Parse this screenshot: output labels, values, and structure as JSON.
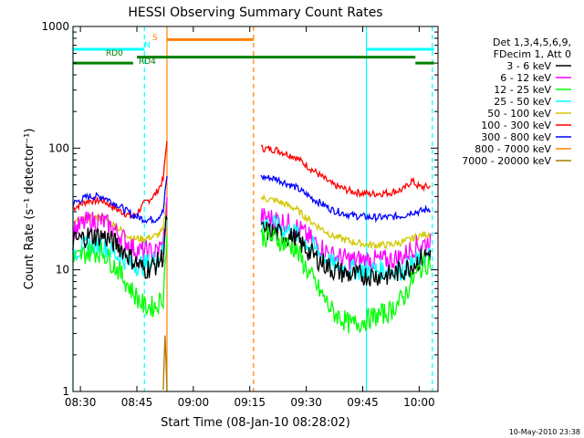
{
  "chart_data": {
    "type": "line",
    "title": "HESSI Observing Summary Count Rates",
    "xlabel": "Start Time (08-Jan-10 08:28:02)",
    "ylabel": "Count Rate (s⁻¹ detector⁻¹)",
    "footer": "10-May-2010 23:38",
    "yscale": "log",
    "xlim": [
      "08:28:02",
      "10:05:00"
    ],
    "ylim": [
      1,
      1000
    ],
    "x_ticks": [
      "08:30",
      "08:45",
      "09:00",
      "09:15",
      "09:30",
      "09:45",
      "10:00"
    ],
    "y_ticks": [
      "1",
      "10",
      "100",
      "1000"
    ],
    "legend": {
      "header": [
        "Det 1,3,4,5,6,9,",
        "FDecim 1, Att 0"
      ],
      "placement": "right",
      "entries": [
        {
          "label": "3 - 6 keV",
          "color": "#000000"
        },
        {
          "label": "6 - 12 keV",
          "color": "#ff00ff"
        },
        {
          "label": "12 - 25 keV",
          "color": "#00ff00"
        },
        {
          "label": "25 - 50 keV",
          "color": "#00ffff"
        },
        {
          "label": "50 - 100 keV",
          "color": "#d2c800"
        },
        {
          "label": "100 - 300 keV",
          "color": "#ff0000"
        },
        {
          "label": "300 - 800 keV",
          "color": "#0000ff"
        },
        {
          "label": "800 - 7000 keV",
          "color": "#ff8000"
        },
        {
          "label": "7000 - 20000 keV",
          "color": "#aa7800"
        }
      ]
    },
    "flag_bars": [
      {
        "label": "N",
        "color": "#00ffff",
        "y": 650,
        "segments": [
          [
            "08:28",
            "08:47"
          ],
          [
            "09:46",
            "10:04"
          ]
        ]
      },
      {
        "label": "S",
        "color": "#ff8000",
        "y": 780,
        "segments": [
          [
            "08:53",
            "09:16"
          ]
        ]
      },
      {
        "label": "RD0",
        "color": "#008000",
        "y": 500,
        "segments": [
          [
            "08:28",
            "08:44"
          ],
          [
            "09:59",
            "10:04"
          ]
        ]
      },
      {
        "label": "RD4",
        "color": "#008000",
        "y": 560,
        "segments": [
          [
            "08:45",
            "09:59"
          ]
        ]
      }
    ],
    "vlines": [
      {
        "time": "08:28:02",
        "color": "#00ffff",
        "style": "solid"
      },
      {
        "time": "08:47:00",
        "color": "#00ffff",
        "style": "dashed"
      },
      {
        "time": "08:53:00",
        "color": "#ff8000",
        "style": "solid"
      },
      {
        "time": "09:16:00",
        "color": "#ff8000",
        "style": "dashed"
      },
      {
        "time": "09:46:00",
        "color": "#00ffff",
        "style": "solid"
      },
      {
        "time": "10:03:30",
        "color": "#00ffff",
        "style": "dashed"
      }
    ],
    "series": [
      {
        "name": "100 - 300 keV",
        "color": "#ff0000",
        "segments": [
          {
            "x": [
              "08:28",
              "08:32",
              "08:36",
              "08:40",
              "08:44",
              "08:47",
              "08:50",
              "08:52",
              "08:53"
            ],
            "y": [
              32,
              37,
              37,
              31,
              27,
              35,
              42,
              55,
              120
            ]
          },
          {
            "x": [
              "09:18",
              "09:22",
              "09:27",
              "09:32",
              "09:37",
              "09:42",
              "09:47",
              "09:52",
              "09:56",
              "09:58",
              "10:00",
              "10:03"
            ],
            "y": [
              100,
              97,
              85,
              65,
              50,
              44,
              42,
              43,
              46,
              54,
              48,
              48
            ]
          }
        ]
      },
      {
        "name": "300 - 800 keV",
        "color": "#0000ff",
        "segments": [
          {
            "x": [
              "08:28",
              "08:32",
              "08:36",
              "08:40",
              "08:44",
              "08:47",
              "08:50",
              "08:52",
              "08:53"
            ],
            "y": [
              35,
              40,
              40,
              34,
              28,
              26,
              26,
              30,
              60
            ]
          },
          {
            "x": [
              "09:18",
              "09:22",
              "09:27",
              "09:32",
              "09:37",
              "09:42",
              "09:47",
              "09:52",
              "09:56",
              "09:58",
              "10:00",
              "10:03"
            ],
            "y": [
              58,
              56,
              48,
              38,
              31,
              28,
              27,
              27,
              28,
              30,
              30,
              32
            ]
          }
        ]
      },
      {
        "name": "50 - 100 keV",
        "color": "#d2c800",
        "segments": [
          {
            "x": [
              "08:28",
              "08:32",
              "08:36",
              "08:40",
              "08:44",
              "08:47",
              "08:50",
              "08:52",
              "08:53"
            ],
            "y": [
              24,
              27,
              27,
              22,
              18,
              18,
              19,
              21,
              40
            ]
          },
          {
            "x": [
              "09:18",
              "09:22",
              "09:27",
              "09:32",
              "09:37",
              "09:42",
              "09:47",
              "09:52",
              "09:56",
              "09:58",
              "10:00",
              "10:03"
            ],
            "y": [
              39,
              37,
              32,
              24,
              19,
              17,
              16,
              16,
              17,
              18,
              19,
              20
            ]
          }
        ]
      },
      {
        "name": "6 - 12 keV",
        "color": "#ff00ff",
        "segments": [
          {
            "x": [
              "08:28",
              "08:32",
              "08:36",
              "08:40",
              "08:44",
              "08:47",
              "08:50",
              "08:52",
              "08:53"
            ],
            "y": [
              21,
              25,
              25,
              20,
              15,
              14,
              14,
              16,
              35
            ]
          },
          {
            "x": [
              "09:18",
              "09:22",
              "09:27",
              "09:32",
              "09:37",
              "09:42",
              "09:47",
              "09:52",
              "09:56",
              "09:58",
              "10:00",
              "10:03"
            ],
            "y": [
              27,
              26,
              23,
              17,
              13,
              12,
              12,
              12,
              13,
              15,
              16,
              17
            ]
          }
        ]
      },
      {
        "name": "25 - 50 keV",
        "color": "#00ffff",
        "segments": [
          {
            "x": [
              "08:28",
              "08:32",
              "08:36",
              "08:40",
              "08:44",
              "08:47",
              "08:50",
              "08:52",
              "08:53"
            ],
            "y": [
              14,
              16,
              16,
              13,
              11,
              11,
              12,
              14,
              30
            ]
          },
          {
            "x": [
              "09:18",
              "09:22",
              "09:27",
              "09:32",
              "09:37",
              "09:42",
              "09:47",
              "09:52",
              "09:56",
              "09:58",
              "10:00",
              "10:03"
            ],
            "y": [
              24,
              23,
              20,
              15,
              11,
              10,
              10,
              10,
              10,
              11,
              12,
              13
            ]
          }
        ]
      },
      {
        "name": "3 - 6 keV",
        "color": "#000000",
        "segments": [
          {
            "x": [
              "08:28",
              "08:32",
              "08:36",
              "08:40",
              "08:44",
              "08:47",
              "08:50",
              "08:52",
              "08:53"
            ],
            "y": [
              17,
              19,
              19,
              16,
              12,
              10,
              11,
              13,
              28
            ]
          },
          {
            "x": [
              "09:18",
              "09:22",
              "09:27",
              "09:32",
              "09:37",
              "09:42",
              "09:47",
              "09:52",
              "09:56",
              "09:58",
              "10:00",
              "10:03"
            ],
            "y": [
              21,
              20,
              18,
              13,
              10,
              9,
              9,
              9,
              10,
              11,
              12,
              14
            ]
          }
        ]
      },
      {
        "name": "12 - 25 keV",
        "color": "#00ff00",
        "segments": [
          {
            "x": [
              "08:28",
              "08:32",
              "08:36",
              "08:40",
              "08:44",
              "08:47",
              "08:50",
              "08:52",
              "08:53"
            ],
            "y": [
              12,
              14,
              14,
              10,
              6.5,
              5,
              5,
              6,
              20
            ]
          },
          {
            "x": [
              "09:18",
              "09:22",
              "09:27",
              "09:32",
              "09:37",
              "09:42",
              "09:47",
              "09:52",
              "09:56",
              "09:58",
              "10:00",
              "10:03"
            ],
            "y": [
              19,
              18,
              15,
              8,
              4.5,
              3.5,
              4,
              4.5,
              6,
              8,
              10,
              12
            ]
          }
        ]
      },
      {
        "name": "7000 - 20000 keV",
        "color": "#aa7800",
        "segments": [
          {
            "x": [
              "08:52",
              "08:52:30",
              "08:53"
            ],
            "y": [
              1,
              3,
              1
            ]
          }
        ]
      }
    ]
  }
}
